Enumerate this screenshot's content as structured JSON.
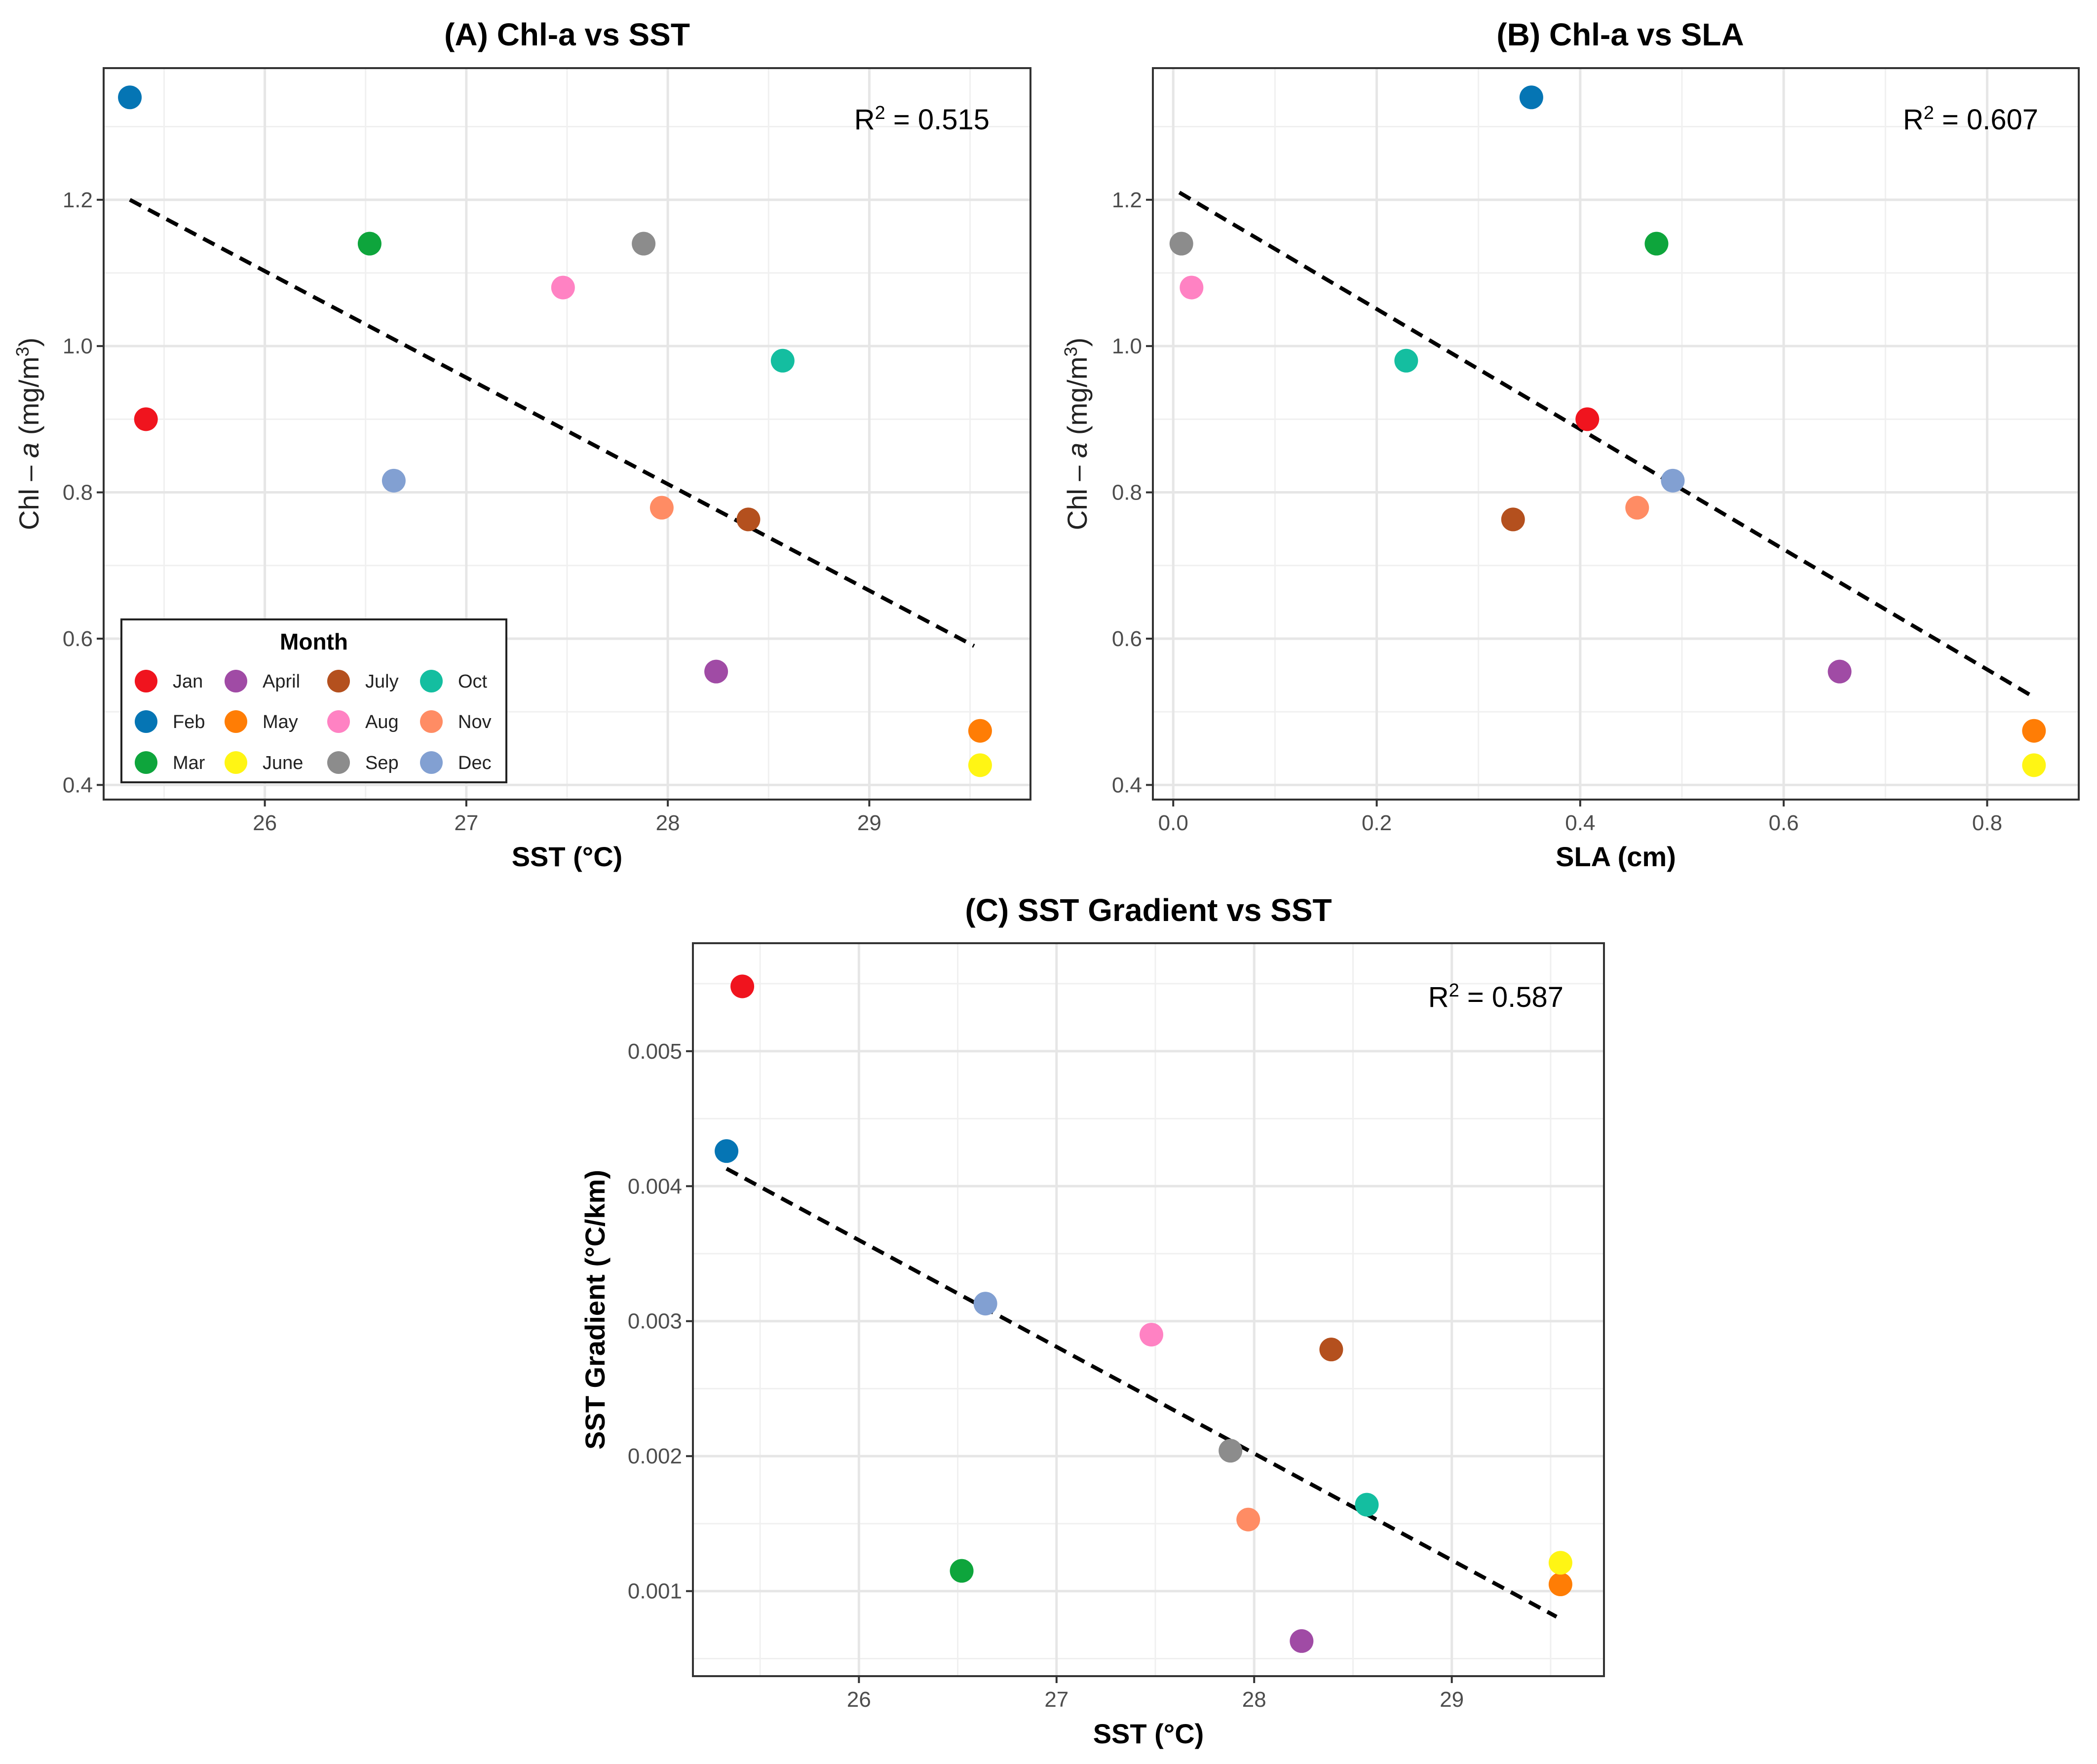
{
  "legend": {
    "title": "Month",
    "months": [
      {
        "name": "Jan",
        "color": "#F0141E"
      },
      {
        "name": "Feb",
        "color": "#0575B4"
      },
      {
        "name": "Mar",
        "color": "#0EA53C"
      },
      {
        "name": "April",
        "color": "#A04BA5"
      },
      {
        "name": "May",
        "color": "#FF7D05"
      },
      {
        "name": "June",
        "color": "#FFF514"
      },
      {
        "name": "July",
        "color": "#B4501E"
      },
      {
        "name": "Aug",
        "color": "#FF82C3"
      },
      {
        "name": "Sep",
        "color": "#8C8C8C"
      },
      {
        "name": "Oct",
        "color": "#14BEA0"
      },
      {
        "name": "Nov",
        "color": "#FF8C64"
      },
      {
        "name": "Dec",
        "color": "#82A0D2"
      }
    ]
  },
  "chart_data": [
    {
      "type": "scatter",
      "title": "(A) Chl-a vs SST",
      "xlabel": "SST (°C)",
      "ylabel": {
        "prefix": "Chl – ",
        "italic": "a",
        "unit": " (mg/m",
        "sup": "3",
        "close": ")"
      },
      "xlim": [
        25.2,
        29.8
      ],
      "ylim": [
        0.38,
        1.38
      ],
      "xticks": [
        26,
        27,
        28,
        29
      ],
      "yticks": [
        0.4,
        0.6,
        0.8,
        1.0,
        1.2
      ],
      "ytick_labels": [
        "0.4",
        "0.6",
        "0.8",
        "1.0",
        "1.2"
      ],
      "xtick_labels": [
        "26",
        "27",
        "28",
        "29"
      ],
      "r2_label": "R",
      "r2_sup": "2",
      "r2_value": " = 0.515",
      "fit_line": {
        "x": [
          25.33,
          29.52
        ],
        "y": [
          1.2,
          0.59
        ]
      },
      "points": [
        {
          "month": "Jan",
          "x": 25.41,
          "y": 0.9
        },
        {
          "month": "Feb",
          "x": 25.33,
          "y": 1.34
        },
        {
          "month": "Mar",
          "x": 26.52,
          "y": 1.14
        },
        {
          "month": "April",
          "x": 28.24,
          "y": 0.555
        },
        {
          "month": "May",
          "x": 29.55,
          "y": 0.474
        },
        {
          "month": "June",
          "x": 29.55,
          "y": 0.427
        },
        {
          "month": "July",
          "x": 28.4,
          "y": 0.763
        },
        {
          "month": "Aug",
          "x": 27.48,
          "y": 1.08
        },
        {
          "month": "Sep",
          "x": 27.88,
          "y": 1.14
        },
        {
          "month": "Oct",
          "x": 28.57,
          "y": 0.98
        },
        {
          "month": "Nov",
          "x": 27.97,
          "y": 0.779
        },
        {
          "month": "Dec",
          "x": 26.64,
          "y": 0.816
        }
      ]
    },
    {
      "type": "scatter",
      "title": "(B) Chl-a vs SLA",
      "xlabel": "SLA (cm)",
      "ylabel": {
        "prefix": "Chl – ",
        "italic": "a",
        "unit": " (mg/m",
        "sup": "3",
        "close": ")"
      },
      "xlim": [
        -0.02,
        0.89
      ],
      "ylim": [
        0.38,
        1.38
      ],
      "xticks": [
        0.0,
        0.2,
        0.4,
        0.6,
        0.8
      ],
      "yticks": [
        0.4,
        0.6,
        0.8,
        1.0,
        1.2
      ],
      "ytick_labels": [
        "0.4",
        "0.6",
        "0.8",
        "1.0",
        "1.2"
      ],
      "xtick_labels": [
        "0.0",
        "0.2",
        "0.4",
        "0.6",
        "0.8"
      ],
      "r2_label": "R",
      "r2_sup": "2",
      "r2_value": " = 0.607",
      "fit_line": {
        "x": [
          0.006,
          0.846
        ],
        "y": [
          1.21,
          0.52
        ]
      },
      "points": [
        {
          "month": "Jan",
          "x": 0.407,
          "y": 0.9
        },
        {
          "month": "Feb",
          "x": 0.352,
          "y": 1.34
        },
        {
          "month": "Mar",
          "x": 0.475,
          "y": 1.14
        },
        {
          "month": "April",
          "x": 0.655,
          "y": 0.555
        },
        {
          "month": "May",
          "x": 0.846,
          "y": 0.474
        },
        {
          "month": "June",
          "x": 0.846,
          "y": 0.427
        },
        {
          "month": "July",
          "x": 0.334,
          "y": 0.763
        },
        {
          "month": "Aug",
          "x": 0.018,
          "y": 1.08
        },
        {
          "month": "Sep",
          "x": 0.008,
          "y": 1.14
        },
        {
          "month": "Oct",
          "x": 0.229,
          "y": 0.98
        },
        {
          "month": "Nov",
          "x": 0.456,
          "y": 0.779
        },
        {
          "month": "Dec",
          "x": 0.491,
          "y": 0.816
        }
      ]
    },
    {
      "type": "scatter",
      "title": "(C) SST Gradient vs SST",
      "xlabel": "SST (°C)",
      "ylabel": {
        "prefix": "SST Gradient (°C/km)",
        "italic": "",
        "unit": "",
        "sup": "",
        "close": ""
      },
      "xlim": [
        25.16,
        29.77
      ],
      "ylim": [
        0.00037,
        0.0058
      ],
      "xticks": [
        26,
        27,
        28,
        29
      ],
      "yticks": [
        0.001,
        0.002,
        0.003,
        0.004,
        0.005
      ],
      "ytick_labels": [
        "0.001",
        "0.002",
        "0.003",
        "0.004",
        "0.005"
      ],
      "xtick_labels": [
        "26",
        "27",
        "28",
        "29"
      ],
      "r2_label": "R",
      "r2_sup": "2",
      "r2_value": " = 0.587",
      "fit_line": {
        "x": [
          25.33,
          29.53
        ],
        "y": [
          0.00413,
          0.00081
        ]
      },
      "points": [
        {
          "month": "Jan",
          "x": 25.41,
          "y": 0.00548
        },
        {
          "month": "Feb",
          "x": 25.33,
          "y": 0.00426
        },
        {
          "month": "Mar",
          "x": 26.52,
          "y": 0.00115
        },
        {
          "month": "April",
          "x": 28.24,
          "y": 0.00063
        },
        {
          "month": "May",
          "x": 29.55,
          "y": 0.00105
        },
        {
          "month": "June",
          "x": 29.55,
          "y": 0.00121
        },
        {
          "month": "July",
          "x": 28.39,
          "y": 0.00279
        },
        {
          "month": "Aug",
          "x": 27.48,
          "y": 0.0029
        },
        {
          "month": "Sep",
          "x": 27.88,
          "y": 0.00204
        },
        {
          "month": "Oct",
          "x": 28.57,
          "y": 0.00164
        },
        {
          "month": "Nov",
          "x": 27.97,
          "y": 0.00153
        },
        {
          "month": "Dec",
          "x": 26.64,
          "y": 0.00313
        }
      ]
    }
  ]
}
